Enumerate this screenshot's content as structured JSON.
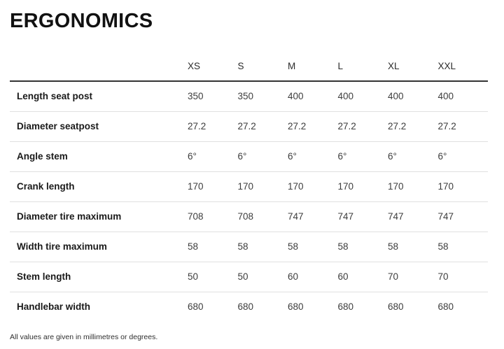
{
  "page": {
    "title": "ERGONOMICS",
    "footnote": "All values are given in millimetres or degrees."
  },
  "table": {
    "columns": [
      "XS",
      "S",
      "M",
      "L",
      "XL",
      "XXL"
    ],
    "rows": [
      {
        "label": "Length seat post",
        "values": [
          "350",
          "350",
          "400",
          "400",
          "400",
          "400"
        ]
      },
      {
        "label": "Diameter seatpost",
        "values": [
          "27.2",
          "27.2",
          "27.2",
          "27.2",
          "27.2",
          "27.2"
        ]
      },
      {
        "label": "Angle stem",
        "values": [
          "6°",
          "6°",
          "6°",
          "6°",
          "6°",
          "6°"
        ]
      },
      {
        "label": "Crank length",
        "values": [
          "170",
          "170",
          "170",
          "170",
          "170",
          "170"
        ]
      },
      {
        "label": "Diameter tire maximum",
        "values": [
          "708",
          "708",
          "747",
          "747",
          "747",
          "747"
        ]
      },
      {
        "label": "Width tire maximum",
        "values": [
          "58",
          "58",
          "58",
          "58",
          "58",
          "58"
        ]
      },
      {
        "label": "Stem length",
        "values": [
          "50",
          "50",
          "60",
          "60",
          "70",
          "70"
        ]
      },
      {
        "label": "Handlebar width",
        "values": [
          "680",
          "680",
          "680",
          "680",
          "680",
          "680"
        ]
      }
    ]
  },
  "colors": {
    "background": "#ffffff",
    "heading_text": "#111111",
    "header_rule": "#333333",
    "row_separator": "#e0e0e0",
    "label_text": "#1a1a1a",
    "value_text": "#3d3d3d",
    "footnote_text": "#2e2e2e"
  }
}
